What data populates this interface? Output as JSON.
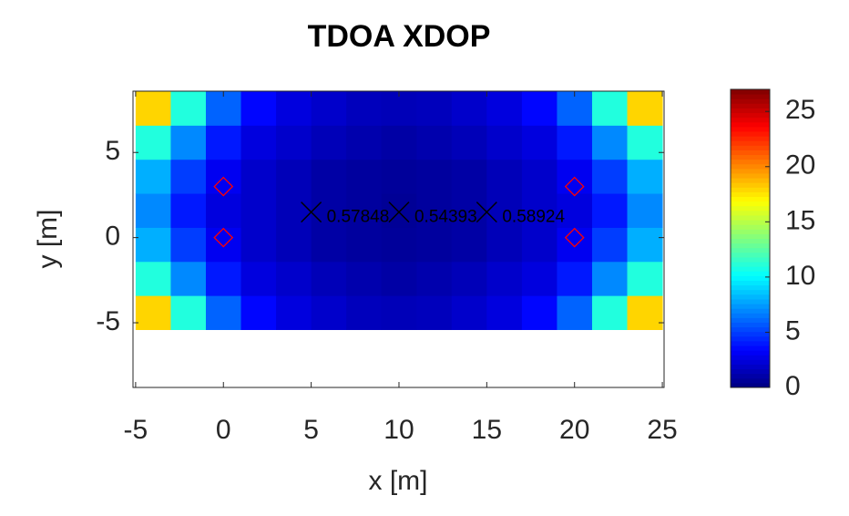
{
  "chart_data": {
    "type": "heatmap",
    "title": "TDOA XDOP",
    "xlabel": "x [m]",
    "ylabel": "y [m]",
    "xlim": [
      -5.15,
      25.1
    ],
    "ylim": [
      -8.8,
      8.6
    ],
    "xticks": [
      -5,
      0,
      5,
      10,
      15,
      20,
      25
    ],
    "yticks": [
      -5,
      0,
      5
    ],
    "x_edges": [
      -5,
      -3,
      -1,
      1,
      3,
      5,
      7,
      9,
      11,
      13,
      15,
      17,
      19,
      21,
      23,
      25
    ],
    "y_edges": [
      -5.4,
      -3.4,
      -1.4,
      0.6,
      2.6,
      4.6,
      6.6,
      8.6
    ],
    "z": [
      [
        18,
        11,
        6,
        3.5,
        2.5,
        2,
        1.6,
        1.5,
        1.6,
        2,
        2.5,
        3.5,
        6,
        11,
        18
      ],
      [
        11,
        7,
        4,
        2.5,
        2,
        1.5,
        1.2,
        1,
        1.2,
        1.5,
        2,
        2.5,
        4,
        7,
        11
      ],
      [
        8,
        5,
        3,
        2,
        1.5,
        1,
        0.8,
        0.7,
        0.8,
        1,
        1.5,
        2,
        3,
        5,
        8
      ],
      [
        7,
        4,
        2.5,
        2,
        1.5,
        1,
        0.8,
        0.6,
        0.8,
        1,
        1.5,
        2,
        2.5,
        4,
        7
      ],
      [
        8,
        5,
        3,
        2,
        1.5,
        1,
        0.8,
        0.7,
        0.8,
        1,
        1.5,
        2,
        3,
        5,
        8
      ],
      [
        11,
        7,
        4,
        2.5,
        2,
        1.5,
        1.2,
        1,
        1.2,
        1.5,
        2,
        2.5,
        4,
        7,
        11
      ],
      [
        18,
        11,
        6,
        3.5,
        2.5,
        2,
        1.6,
        1.5,
        1.6,
        2,
        2.5,
        3.5,
        6,
        11,
        18
      ]
    ],
    "colormap": "jet",
    "clim": [
      0,
      27
    ],
    "cticks": [
      0,
      5,
      10,
      15,
      20,
      25
    ],
    "anchors": {
      "x": [
        0,
        0,
        20,
        20
      ],
      "y": [
        0,
        3,
        0,
        3
      ],
      "color": "#ff0000"
    },
    "points": {
      "x": [
        5,
        10,
        15
      ],
      "y": [
        1.5,
        1.5,
        1.5
      ],
      "values": [
        0.57848,
        0.54393,
        0.58924
      ],
      "color": "#000000"
    }
  }
}
